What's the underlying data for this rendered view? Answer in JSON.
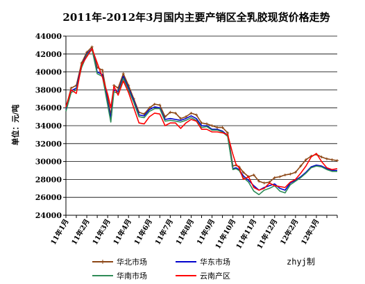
{
  "chart_data": {
    "type": "line",
    "title": "2011年-2012年3月国内主要产销区全乳胶现货价格走势",
    "ylabel": "单位：元/吨",
    "xlabel": "",
    "credit": "zhyj制",
    "ylim": [
      24000,
      44000
    ],
    "yticks": [
      24000,
      26000,
      28000,
      30000,
      32000,
      34000,
      36000,
      38000,
      40000,
      42000,
      44000
    ],
    "xlim": [
      0,
      26
    ],
    "xticks": [
      {
        "x": 0,
        "label": "11年1月"
      },
      {
        "x": 2,
        "label": "11年2月"
      },
      {
        "x": 4,
        "label": "11年3月"
      },
      {
        "x": 6,
        "label": "11年4月"
      },
      {
        "x": 8,
        "label": "11年6月"
      },
      {
        "x": 10,
        "label": "11年7月"
      },
      {
        "x": 12,
        "label": "11年8月"
      },
      {
        "x": 14,
        "label": "11年9月"
      },
      {
        "x": 16,
        "label": "11年10月"
      },
      {
        "x": 18,
        "label": "11年11月"
      },
      {
        "x": 20,
        "label": "11年12月"
      },
      {
        "x": 22,
        "label": "12年2月"
      },
      {
        "x": 24,
        "label": "12年3月"
      }
    ],
    "grid": "horizontal",
    "legend_position": "bottom",
    "series": [
      {
        "name": "华北市场",
        "color": "#8B4513",
        "marker": "plus",
        "x": [
          0,
          0.5,
          1,
          1.5,
          2,
          2.5,
          3,
          3.5,
          4,
          4.3,
          4.6,
          5,
          5.5,
          6,
          6.5,
          7,
          7.5,
          8,
          8.5,
          9,
          9.5,
          10,
          10.5,
          11,
          11.5,
          12,
          12.5,
          13,
          13.5,
          14,
          14.5,
          15,
          15.5,
          16,
          16.3,
          16.6,
          17,
          17.5,
          18,
          18.5,
          19,
          19.5,
          20,
          20.5,
          21,
          21.5,
          22,
          22.5,
          23,
          23.5,
          24,
          24.5,
          25,
          25.5,
          26
        ],
        "y": [
          36000,
          38200,
          38500,
          41000,
          42200,
          42800,
          40500,
          40200,
          37000,
          35200,
          38500,
          38200,
          39800,
          38500,
          37000,
          35500,
          35300,
          36000,
          36400,
          36300,
          35000,
          35500,
          35400,
          34800,
          35000,
          35400,
          35200,
          34300,
          34200,
          34000,
          33800,
          33800,
          33200,
          29500,
          29600,
          29400,
          28800,
          28300,
          28500,
          27800,
          27600,
          27700,
          28200,
          28300,
          28500,
          28600,
          28800,
          29500,
          30200,
          30600,
          30800,
          30500,
          30300,
          30200,
          30100
        ]
      },
      {
        "name": "华东市场",
        "color": "#0000CC",
        "marker": "none",
        "x": [
          0,
          0.5,
          1,
          1.5,
          2,
          2.5,
          3,
          3.5,
          4,
          4.3,
          4.6,
          5,
          5.5,
          6,
          6.5,
          7,
          7.5,
          8,
          8.5,
          9,
          9.5,
          10,
          10.5,
          11,
          11.5,
          12,
          12.5,
          13,
          13.5,
          14,
          14.5,
          15,
          15.5,
          16,
          16.3,
          16.6,
          17,
          17.5,
          18,
          18.5,
          19,
          19.5,
          20,
          20.5,
          21,
          21.5,
          22,
          22.5,
          23,
          23.5,
          24,
          24.5,
          25,
          25.5,
          26
        ],
        "y": [
          35800,
          37900,
          38200,
          40700,
          42000,
          42600,
          40000,
          39700,
          36600,
          34800,
          38000,
          37800,
          39500,
          38200,
          36800,
          35200,
          35100,
          35800,
          36100,
          36000,
          34700,
          34800,
          34700,
          34600,
          34800,
          35100,
          34800,
          34000,
          34000,
          33600,
          33600,
          33400,
          32900,
          29200,
          29300,
          29100,
          28400,
          27900,
          27300,
          26800,
          27100,
          27300,
          27500,
          27000,
          26800,
          27600,
          27900,
          28300,
          28800,
          29400,
          29600,
          29500,
          29200,
          29000,
          29000
        ]
      },
      {
        "name": "华南市场",
        "color": "#2E8B57",
        "marker": "none",
        "x": [
          0,
          0.5,
          1,
          1.5,
          2,
          2.5,
          3,
          3.5,
          4,
          4.3,
          4.6,
          5,
          5.5,
          6,
          6.5,
          7,
          7.5,
          8,
          8.5,
          9,
          9.5,
          10,
          10.5,
          11,
          11.5,
          12,
          12.5,
          13,
          13.5,
          14,
          14.5,
          15,
          15.5,
          16,
          16.3,
          16.6,
          17,
          17.5,
          18,
          18.5,
          19,
          19.5,
          20,
          20.5,
          21,
          21.5,
          22,
          22.5,
          23,
          23.5,
          24,
          24.5,
          25,
          25.5,
          26
        ],
        "y": [
          35600,
          37700,
          38000,
          40500,
          41900,
          42500,
          39800,
          39500,
          36300,
          34400,
          37800,
          37600,
          39300,
          38000,
          36600,
          35000,
          34900,
          35600,
          35900,
          35900,
          34500,
          34600,
          34500,
          34400,
          34600,
          34900,
          34600,
          33800,
          33900,
          33500,
          33500,
          33300,
          32800,
          29100,
          29200,
          29000,
          28200,
          27700,
          26700,
          26300,
          26800,
          27000,
          27300,
          26700,
          26500,
          27400,
          27800,
          28200,
          28700,
          29300,
          29500,
          29400,
          29100,
          28900,
          28900
        ]
      },
      {
        "name": "云南产区",
        "color": "#FF0000",
        "marker": "none",
        "x": [
          0,
          0.5,
          1,
          1.5,
          2,
          2.5,
          3,
          3.5,
          4,
          4.3,
          4.6,
          5,
          5.5,
          6,
          6.5,
          7,
          7.5,
          8,
          8.5,
          9,
          9.5,
          10,
          10.5,
          11,
          11.5,
          12,
          12.5,
          13,
          13.5,
          14,
          14.5,
          15,
          15.5,
          16,
          16.3,
          16.6,
          17,
          17.5,
          18,
          18.5,
          19,
          19.5,
          20,
          20.5,
          21,
          21.5,
          22,
          22.5,
          23,
          23.5,
          24,
          24.5,
          25,
          25.5,
          26
        ],
        "y": [
          36100,
          38000,
          37600,
          40800,
          41700,
          42600,
          41000,
          39400,
          37500,
          36000,
          38400,
          37400,
          39000,
          37700,
          36000,
          34300,
          34200,
          35000,
          35400,
          35300,
          34000,
          34300,
          34300,
          33700,
          34300,
          34700,
          34500,
          33600,
          33600,
          33300,
          33300,
          33200,
          33000,
          30800,
          29700,
          29300,
          28000,
          28300,
          27100,
          26800,
          27000,
          27600,
          27300,
          27200,
          27100,
          27700,
          28000,
          28700,
          29500,
          30500,
          30900,
          30000,
          29300,
          29100,
          29200
        ]
      }
    ]
  }
}
